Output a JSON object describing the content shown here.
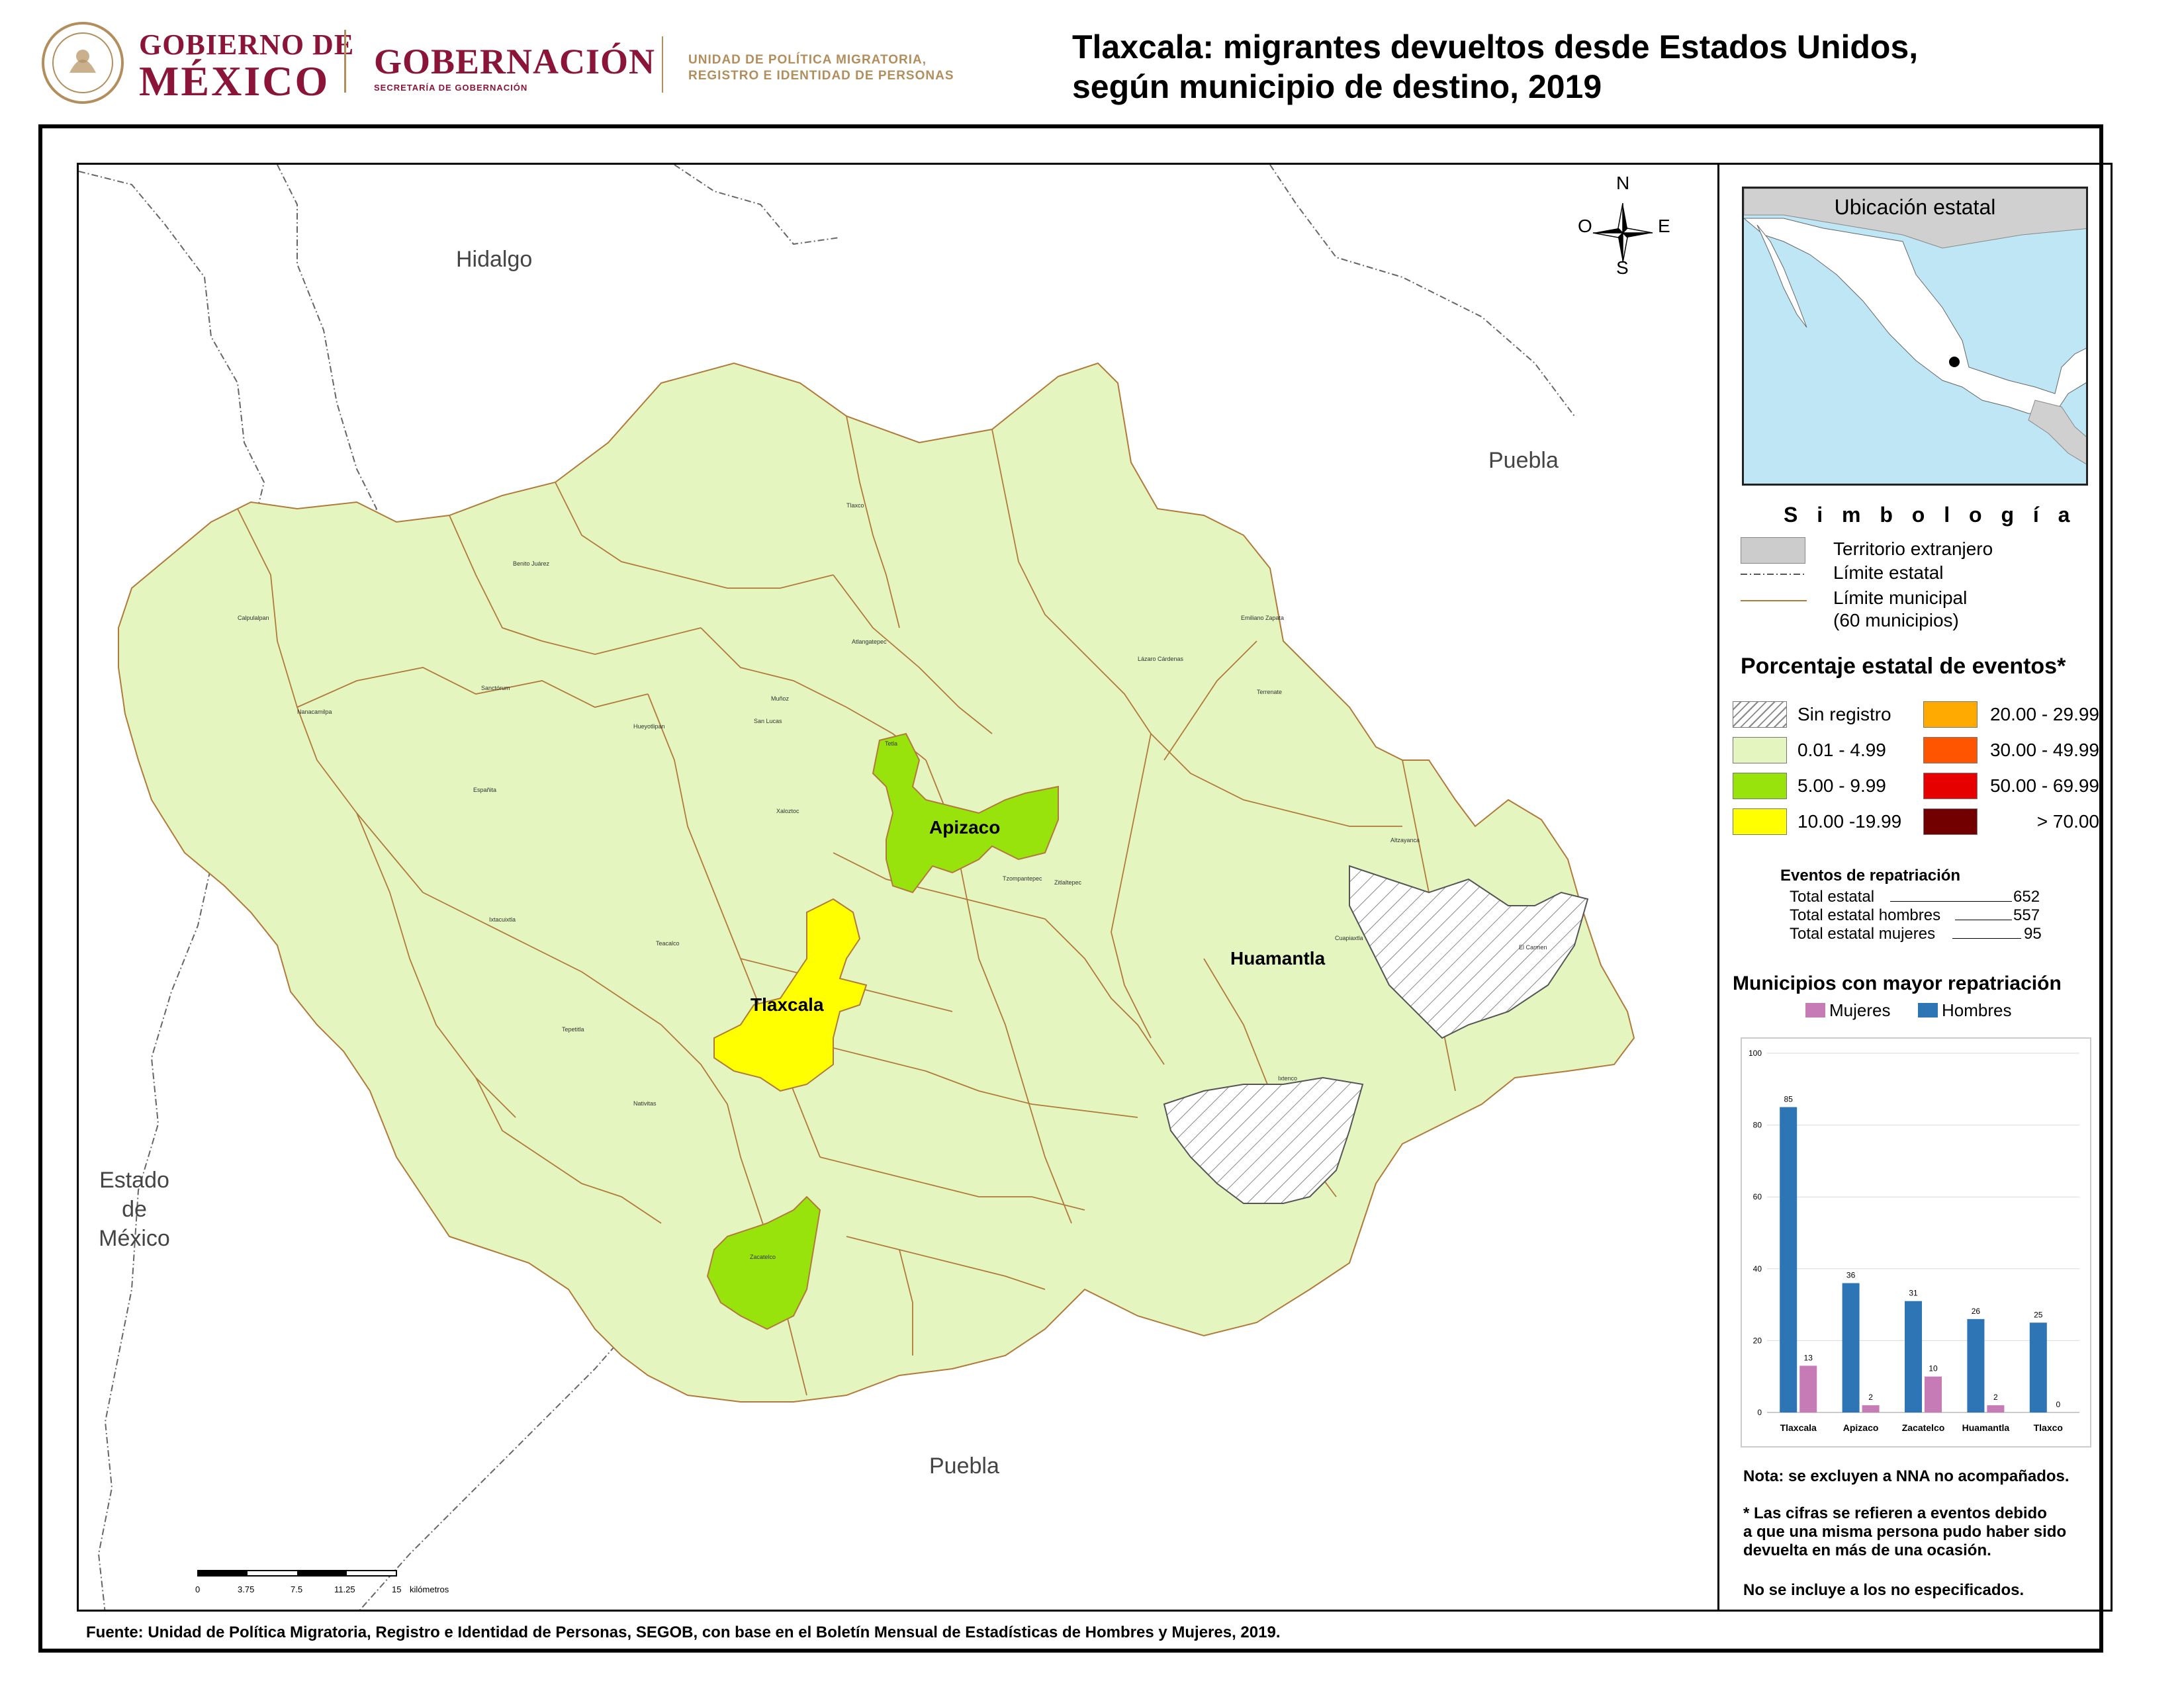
{
  "header": {
    "gob_line1": "GOBIERNO DE",
    "gob_line2": "MÉXICO",
    "gobernacion": "GOBERNACIÓN",
    "segob": "SECRETARÍA DE GOBERNACIÓN",
    "upm_line1": "UNIDAD DE POLÍTICA MIGRATORIA,",
    "upm_line2": "REGISTRO E IDENTIDAD DE PERSONAS",
    "title_line1": "Tlaxcala: migrantes devueltos desde Estados Unidos,",
    "title_line2": "según municipio de destino, 2019"
  },
  "map": {
    "neighbors": {
      "hidalgo": "Hidalgo",
      "puebla_ne": "Puebla",
      "puebla_s": "Puebla",
      "edomex_1": "Estado",
      "edomex_2": "de",
      "edomex_3": "México"
    },
    "highlighted": {
      "apizaco": "Apizaco",
      "tlaxcala": "Tlaxcala",
      "huamantla": "Huamantla"
    },
    "municipalities": [
      "Tlaxco",
      "Calpulalpan",
      "Benito Juárez",
      "Atlangatepec",
      "Nanacamilpa",
      "Sanctórum",
      "Hueyotlipan",
      "Muñoz",
      "San Lucas",
      "Tetla",
      "Xaloztoc",
      "Cuapiaxtla",
      "Españita",
      "Altzayanca",
      "Ixtacuixtla",
      "El Carmen",
      "Teacalco",
      "Tzompantepec",
      "Terrenate",
      "Lázaro Cárdenas",
      "Emiliano Zapata",
      "Ixtenco",
      "Zitlaltepec",
      "Zacatelco",
      "Nativitas",
      "Tepetitla"
    ],
    "compass": {
      "n": "N",
      "s": "S",
      "e": "E",
      "o": "O"
    },
    "scale": {
      "ticks": [
        "0",
        "3.75",
        "7.5",
        "11.25",
        "15"
      ],
      "unit": "kilómetros"
    }
  },
  "legend": {
    "inset_title": "Ubicación estatal",
    "simbologia": "S i m b o l o g í a",
    "territorio": "Territorio extranjero",
    "limite_estatal": "Límite estatal",
    "limite_municipal": "Límite municipal",
    "municipios": "(60 municipios)",
    "pct_title": "Porcentaje estatal de eventos*",
    "classes_left": [
      {
        "label": "Sin registro",
        "color": "hatch"
      },
      {
        "label": "0.01  - 4.99",
        "color": "#e5f5c0"
      },
      {
        "label": "5.00  - 9.99",
        "color": "#99e30c"
      },
      {
        "label": "10.00 -19.99",
        "color": "#ffff00"
      }
    ],
    "classes_right": [
      {
        "label": "20.00 - 29.99",
        "color": "#ffaa00"
      },
      {
        "label": "30.00 - 49.99",
        "color": "#ff5500"
      },
      {
        "label": "50.00 - 69.99",
        "color": "#e60000"
      },
      {
        "label": "> 70.00",
        "color": "#730000"
      }
    ],
    "events_title": "Eventos de repatriación",
    "events": [
      {
        "label": "Total estatal",
        "value": "652"
      },
      {
        "label": "Total estatal hombres",
        "value": "557"
      },
      {
        "label": "Total estatal mujeres",
        "value": "95"
      }
    ],
    "top_title": "Municipios con mayor repatriación",
    "notes": [
      "Nota: se excluyen a NNA no acompañados.",
      "* Las cifras se refieren a eventos debido",
      "a que una misma persona pudo haber sido",
      "devuelta en más de una ocasión.",
      "No se incluye a los no especificados."
    ]
  },
  "source": "Fuente: Unidad de Política Migratoria, Registro e Identidad de Personas, SEGOB, con base en el Boletín Mensual de Estadísticas de Hombres y Mujeres, 2019.",
  "chart_data": {
    "type": "bar",
    "categories": [
      "Tlaxcala",
      "Apizaco",
      "Zacatelco",
      "Huamantla",
      "Tlaxco"
    ],
    "series": [
      {
        "name": "Mujeres",
        "values": [
          13,
          2,
          10,
          2,
          0
        ],
        "color": "#c77bb6"
      },
      {
        "name": "Hombres",
        "values": [
          85,
          36,
          31,
          26,
          25
        ],
        "color": "#2e75b6"
      }
    ],
    "ylim": [
      0,
      100
    ],
    "yticks": [
      "0",
      "20",
      "40",
      "60",
      "80",
      "100"
    ],
    "legend_position": "top"
  }
}
